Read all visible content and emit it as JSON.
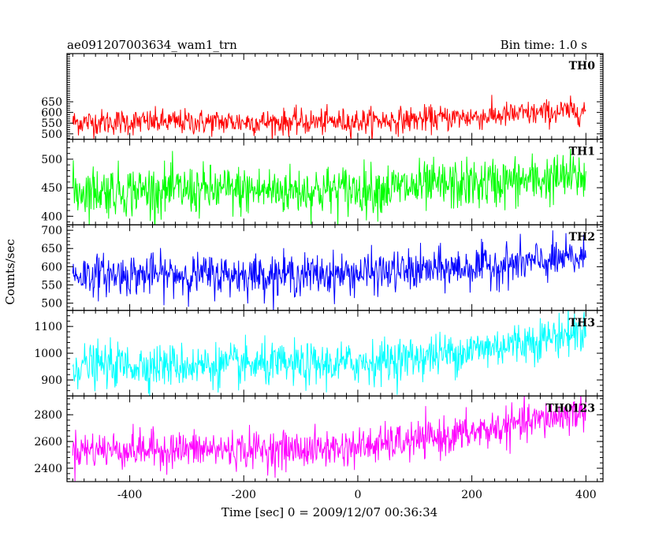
{
  "chart_data": {
    "type": "line",
    "title": "ae091207003634_wam1_trn",
    "subtitle": "Bin time: 1.0 s",
    "xlabel": "Time [sec] 0 = 2009/12/07 00:36:34",
    "ylabel": "Counts/sec",
    "xlim": [
      -510,
      430
    ],
    "x_ticks": [
      -400,
      -200,
      0,
      200,
      400
    ],
    "x_range": [
      -500,
      400
    ],
    "bin_time": 1.0,
    "grid": false,
    "series": [
      {
        "name": "TH0",
        "color": "#ff0000",
        "ylim": [
          475,
          875
        ],
        "y_ticks": [
          500,
          550,
          600,
          650
        ],
        "start_mean": 555,
        "end_mean": 610,
        "noise": 30
      },
      {
        "name": "TH1",
        "color": "#00ff00",
        "ylim": [
          385,
          535
        ],
        "y_ticks": [
          400,
          450,
          500
        ],
        "start_mean": 445,
        "end_mean": 470,
        "noise": 22
      },
      {
        "name": "TH2",
        "color": "#0000ff",
        "ylim": [
          480,
          715
        ],
        "y_ticks": [
          500,
          550,
          600,
          650,
          700
        ],
        "start_mean": 578,
        "end_mean": 625,
        "noise": 28
      },
      {
        "name": "TH3",
        "color": "#00ffff",
        "ylim": [
          840,
          1160
        ],
        "y_ticks": [
          900,
          1000,
          1100
        ],
        "start_mean": 955,
        "end_mean": 1085,
        "noise": 40
      },
      {
        "name": "TH0123",
        "color": "#ff00ff",
        "ylim": [
          2300,
          2940
        ],
        "y_ticks": [
          2400,
          2600,
          2800
        ],
        "start_mean": 2540,
        "end_mean": 2830,
        "noise": 70
      }
    ]
  }
}
